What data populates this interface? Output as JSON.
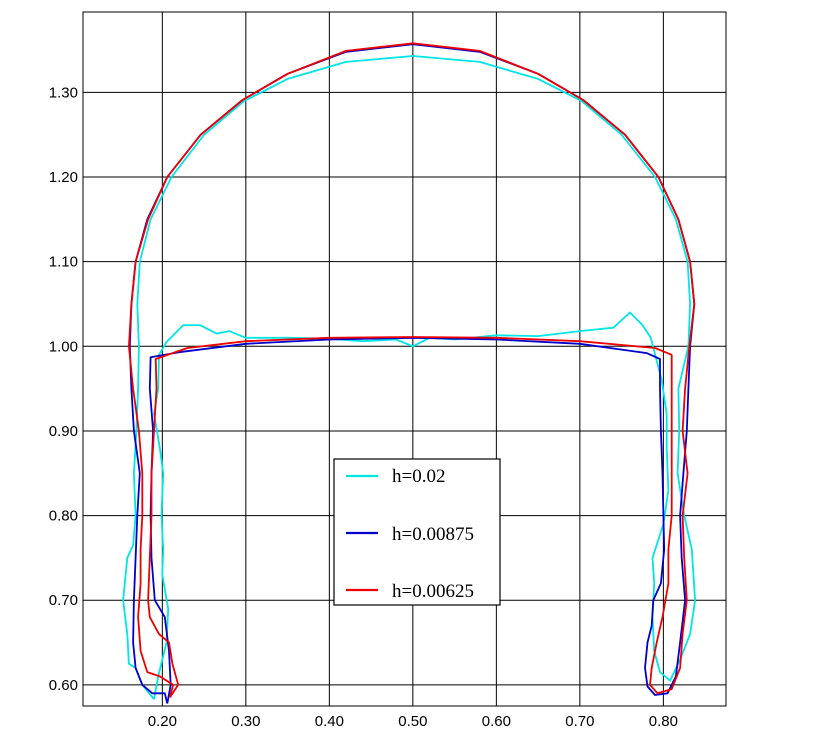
{
  "chart_data": {
    "type": "line",
    "title": "",
    "xlabel": "",
    "ylabel": "",
    "xlim": [
      0.105,
      0.875
    ],
    "ylim": [
      0.575,
      1.395
    ],
    "grid": true,
    "legend_position": "center",
    "x_ticks": [
      {
        "value": 0.2,
        "label": "0.20"
      },
      {
        "value": 0.3,
        "label": "0.30"
      },
      {
        "value": 0.4,
        "label": "0.40"
      },
      {
        "value": 0.5,
        "label": "0.50"
      },
      {
        "value": 0.6,
        "label": "0.60"
      },
      {
        "value": 0.7,
        "label": "0.70"
      },
      {
        "value": 0.8,
        "label": "0.80"
      }
    ],
    "y_ticks": [
      {
        "value": 0.6,
        "label": "0.60"
      },
      {
        "value": 0.7,
        "label": "0.70"
      },
      {
        "value": 0.8,
        "label": "0.80"
      },
      {
        "value": 0.9,
        "label": "0.90"
      },
      {
        "value": 1.0,
        "label": "1.00"
      },
      {
        "value": 1.1,
        "label": "1.10"
      },
      {
        "value": 1.2,
        "label": "1.20"
      },
      {
        "value": 1.3,
        "label": "1.30"
      }
    ],
    "series": [
      {
        "name": "h=0.02",
        "color": "#00e5e5",
        "points": [
          [
            0.19,
            0.583
          ],
          [
            0.176,
            0.6
          ],
          [
            0.168,
            0.62
          ],
          [
            0.16,
            0.625
          ],
          [
            0.158,
            0.66
          ],
          [
            0.153,
            0.7
          ],
          [
            0.158,
            0.75
          ],
          [
            0.165,
            0.765
          ],
          [
            0.168,
            0.8
          ],
          [
            0.166,
            0.85
          ],
          [
            0.169,
            0.9
          ],
          [
            0.171,
            0.95
          ],
          [
            0.172,
            1.0
          ],
          [
            0.17,
            1.05
          ],
          [
            0.173,
            1.1
          ],
          [
            0.186,
            1.15
          ],
          [
            0.211,
            1.2
          ],
          [
            0.25,
            1.25
          ],
          [
            0.298,
            1.29
          ],
          [
            0.35,
            1.316
          ],
          [
            0.42,
            1.336
          ],
          [
            0.5,
            1.343
          ],
          [
            0.58,
            1.336
          ],
          [
            0.65,
            1.316
          ],
          [
            0.702,
            1.29
          ],
          [
            0.75,
            1.25
          ],
          [
            0.79,
            1.2
          ],
          [
            0.815,
            1.15
          ],
          [
            0.829,
            1.1
          ],
          [
            0.832,
            1.05
          ],
          [
            0.83,
            1.0
          ],
          [
            0.818,
            0.95
          ],
          [
            0.819,
            0.9
          ],
          [
            0.817,
            0.85
          ],
          [
            0.825,
            0.8
          ],
          [
            0.834,
            0.76
          ],
          [
            0.838,
            0.7
          ],
          [
            0.832,
            0.66
          ],
          [
            0.82,
            0.63
          ],
          [
            0.808,
            0.605
          ],
          [
            0.796,
            0.615
          ],
          [
            0.789,
            0.64
          ],
          [
            0.787,
            0.68
          ],
          [
            0.789,
            0.72
          ],
          [
            0.787,
            0.75
          ],
          [
            0.8,
            0.79
          ],
          [
            0.806,
            0.83
          ],
          [
            0.804,
            0.88
          ],
          [
            0.804,
            0.92
          ],
          [
            0.798,
            0.96
          ],
          [
            0.785,
            1.01
          ],
          [
            0.775,
            1.025
          ],
          [
            0.76,
            1.04
          ],
          [
            0.74,
            1.022
          ],
          [
            0.7,
            1.018
          ],
          [
            0.65,
            1.012
          ],
          [
            0.6,
            1.013
          ],
          [
            0.55,
            1.008
          ],
          [
            0.52,
            1.01
          ],
          [
            0.5,
            1.0
          ],
          [
            0.48,
            1.008
          ],
          [
            0.44,
            1.006
          ],
          [
            0.4,
            1.009
          ],
          [
            0.35,
            1.01
          ],
          [
            0.3,
            1.01
          ],
          [
            0.28,
            1.018
          ],
          [
            0.265,
            1.015
          ],
          [
            0.245,
            1.025
          ],
          [
            0.225,
            1.025
          ],
          [
            0.205,
            1.005
          ],
          [
            0.196,
            0.99
          ],
          [
            0.195,
            0.95
          ],
          [
            0.19,
            0.92
          ],
          [
            0.197,
            0.88
          ],
          [
            0.201,
            0.85
          ],
          [
            0.199,
            0.8
          ],
          [
            0.201,
            0.76
          ],
          [
            0.2,
            0.73
          ],
          [
            0.207,
            0.69
          ],
          [
            0.205,
            0.65
          ],
          [
            0.195,
            0.61
          ],
          [
            0.19,
            0.583
          ]
        ]
      },
      {
        "name": "h=0.00875",
        "color": "#0000cc",
        "points": [
          [
            0.206,
            0.578
          ],
          [
            0.203,
            0.59
          ],
          [
            0.188,
            0.59
          ],
          [
            0.176,
            0.6
          ],
          [
            0.168,
            0.62
          ],
          [
            0.165,
            0.65
          ],
          [
            0.166,
            0.7
          ],
          [
            0.168,
            0.75
          ],
          [
            0.17,
            0.8
          ],
          [
            0.173,
            0.85
          ],
          [
            0.166,
            0.9
          ],
          [
            0.163,
            0.95
          ],
          [
            0.161,
            1.0
          ],
          [
            0.163,
            1.05
          ],
          [
            0.168,
            1.1
          ],
          [
            0.182,
            1.15
          ],
          [
            0.206,
            1.2
          ],
          [
            0.246,
            1.25
          ],
          [
            0.296,
            1.291
          ],
          [
            0.35,
            1.322
          ],
          [
            0.42,
            1.348
          ],
          [
            0.5,
            1.357
          ],
          [
            0.58,
            1.348
          ],
          [
            0.65,
            1.322
          ],
          [
            0.704,
            1.291
          ],
          [
            0.754,
            1.25
          ],
          [
            0.794,
            1.2
          ],
          [
            0.818,
            1.15
          ],
          [
            0.832,
            1.1
          ],
          [
            0.837,
            1.05
          ],
          [
            0.832,
            1.0
          ],
          [
            0.83,
            0.95
          ],
          [
            0.828,
            0.9
          ],
          [
            0.824,
            0.85
          ],
          [
            0.82,
            0.8
          ],
          [
            0.822,
            0.75
          ],
          [
            0.826,
            0.7
          ],
          [
            0.82,
            0.65
          ],
          [
            0.815,
            0.61
          ],
          [
            0.805,
            0.59
          ],
          [
            0.79,
            0.588
          ],
          [
            0.781,
            0.598
          ],
          [
            0.778,
            0.62
          ],
          [
            0.781,
            0.65
          ],
          [
            0.786,
            0.67
          ],
          [
            0.788,
            0.7
          ],
          [
            0.797,
            0.72
          ],
          [
            0.801,
            0.76
          ],
          [
            0.8,
            0.8
          ],
          [
            0.799,
            0.85
          ],
          [
            0.797,
            0.9
          ],
          [
            0.796,
            0.95
          ],
          [
            0.796,
            0.985
          ],
          [
            0.78,
            0.992
          ],
          [
            0.7,
            1.003
          ],
          [
            0.6,
            1.008
          ],
          [
            0.5,
            1.01
          ],
          [
            0.4,
            1.008
          ],
          [
            0.3,
            1.003
          ],
          [
            0.22,
            0.993
          ],
          [
            0.186,
            0.987
          ],
          [
            0.185,
            0.95
          ],
          [
            0.189,
            0.9
          ],
          [
            0.187,
            0.85
          ],
          [
            0.186,
            0.8
          ],
          [
            0.187,
            0.75
          ],
          [
            0.191,
            0.7
          ],
          [
            0.203,
            0.68
          ],
          [
            0.208,
            0.64
          ],
          [
            0.21,
            0.6
          ],
          [
            0.206,
            0.578
          ]
        ]
      },
      {
        "name": "h=0.00625",
        "color": "#ee0000",
        "points": [
          [
            0.209,
            0.585
          ],
          [
            0.213,
            0.6
          ],
          [
            0.197,
            0.61
          ],
          [
            0.182,
            0.615
          ],
          [
            0.174,
            0.64
          ],
          [
            0.171,
            0.68
          ],
          [
            0.174,
            0.72
          ],
          [
            0.174,
            0.76
          ],
          [
            0.176,
            0.8
          ],
          [
            0.176,
            0.85
          ],
          [
            0.172,
            0.9
          ],
          [
            0.165,
            0.95
          ],
          [
            0.16,
            1.0
          ],
          [
            0.163,
            1.05
          ],
          [
            0.168,
            1.1
          ],
          [
            0.183,
            1.15
          ],
          [
            0.206,
            1.2
          ],
          [
            0.246,
            1.25
          ],
          [
            0.296,
            1.291
          ],
          [
            0.35,
            1.322
          ],
          [
            0.42,
            1.349
          ],
          [
            0.5,
            1.358
          ],
          [
            0.58,
            1.349
          ],
          [
            0.65,
            1.322
          ],
          [
            0.704,
            1.291
          ],
          [
            0.754,
            1.25
          ],
          [
            0.794,
            1.2
          ],
          [
            0.818,
            1.15
          ],
          [
            0.832,
            1.1
          ],
          [
            0.837,
            1.05
          ],
          [
            0.831,
            1.0
          ],
          [
            0.826,
            0.95
          ],
          [
            0.823,
            0.9
          ],
          [
            0.829,
            0.85
          ],
          [
            0.823,
            0.8
          ],
          [
            0.825,
            0.75
          ],
          [
            0.828,
            0.7
          ],
          [
            0.823,
            0.66
          ],
          [
            0.82,
            0.62
          ],
          [
            0.81,
            0.595
          ],
          [
            0.793,
            0.59
          ],
          [
            0.784,
            0.6
          ],
          [
            0.786,
            0.62
          ],
          [
            0.792,
            0.65
          ],
          [
            0.799,
            0.68
          ],
          [
            0.806,
            0.72
          ],
          [
            0.806,
            0.76
          ],
          [
            0.81,
            0.8
          ],
          [
            0.81,
            0.85
          ],
          [
            0.81,
            0.9
          ],
          [
            0.81,
            0.95
          ],
          [
            0.81,
            0.99
          ],
          [
            0.79,
            0.998
          ],
          [
            0.7,
            1.006
          ],
          [
            0.6,
            1.01
          ],
          [
            0.5,
            1.011
          ],
          [
            0.4,
            1.01
          ],
          [
            0.3,
            1.006
          ],
          [
            0.23,
            0.998
          ],
          [
            0.192,
            0.985
          ],
          [
            0.193,
            0.95
          ],
          [
            0.19,
            0.9
          ],
          [
            0.187,
            0.85
          ],
          [
            0.187,
            0.8
          ],
          [
            0.185,
            0.75
          ],
          [
            0.183,
            0.7
          ],
          [
            0.185,
            0.68
          ],
          [
            0.196,
            0.66
          ],
          [
            0.208,
            0.65
          ],
          [
            0.212,
            0.625
          ],
          [
            0.219,
            0.6
          ],
          [
            0.209,
            0.585
          ]
        ]
      }
    ]
  }
}
